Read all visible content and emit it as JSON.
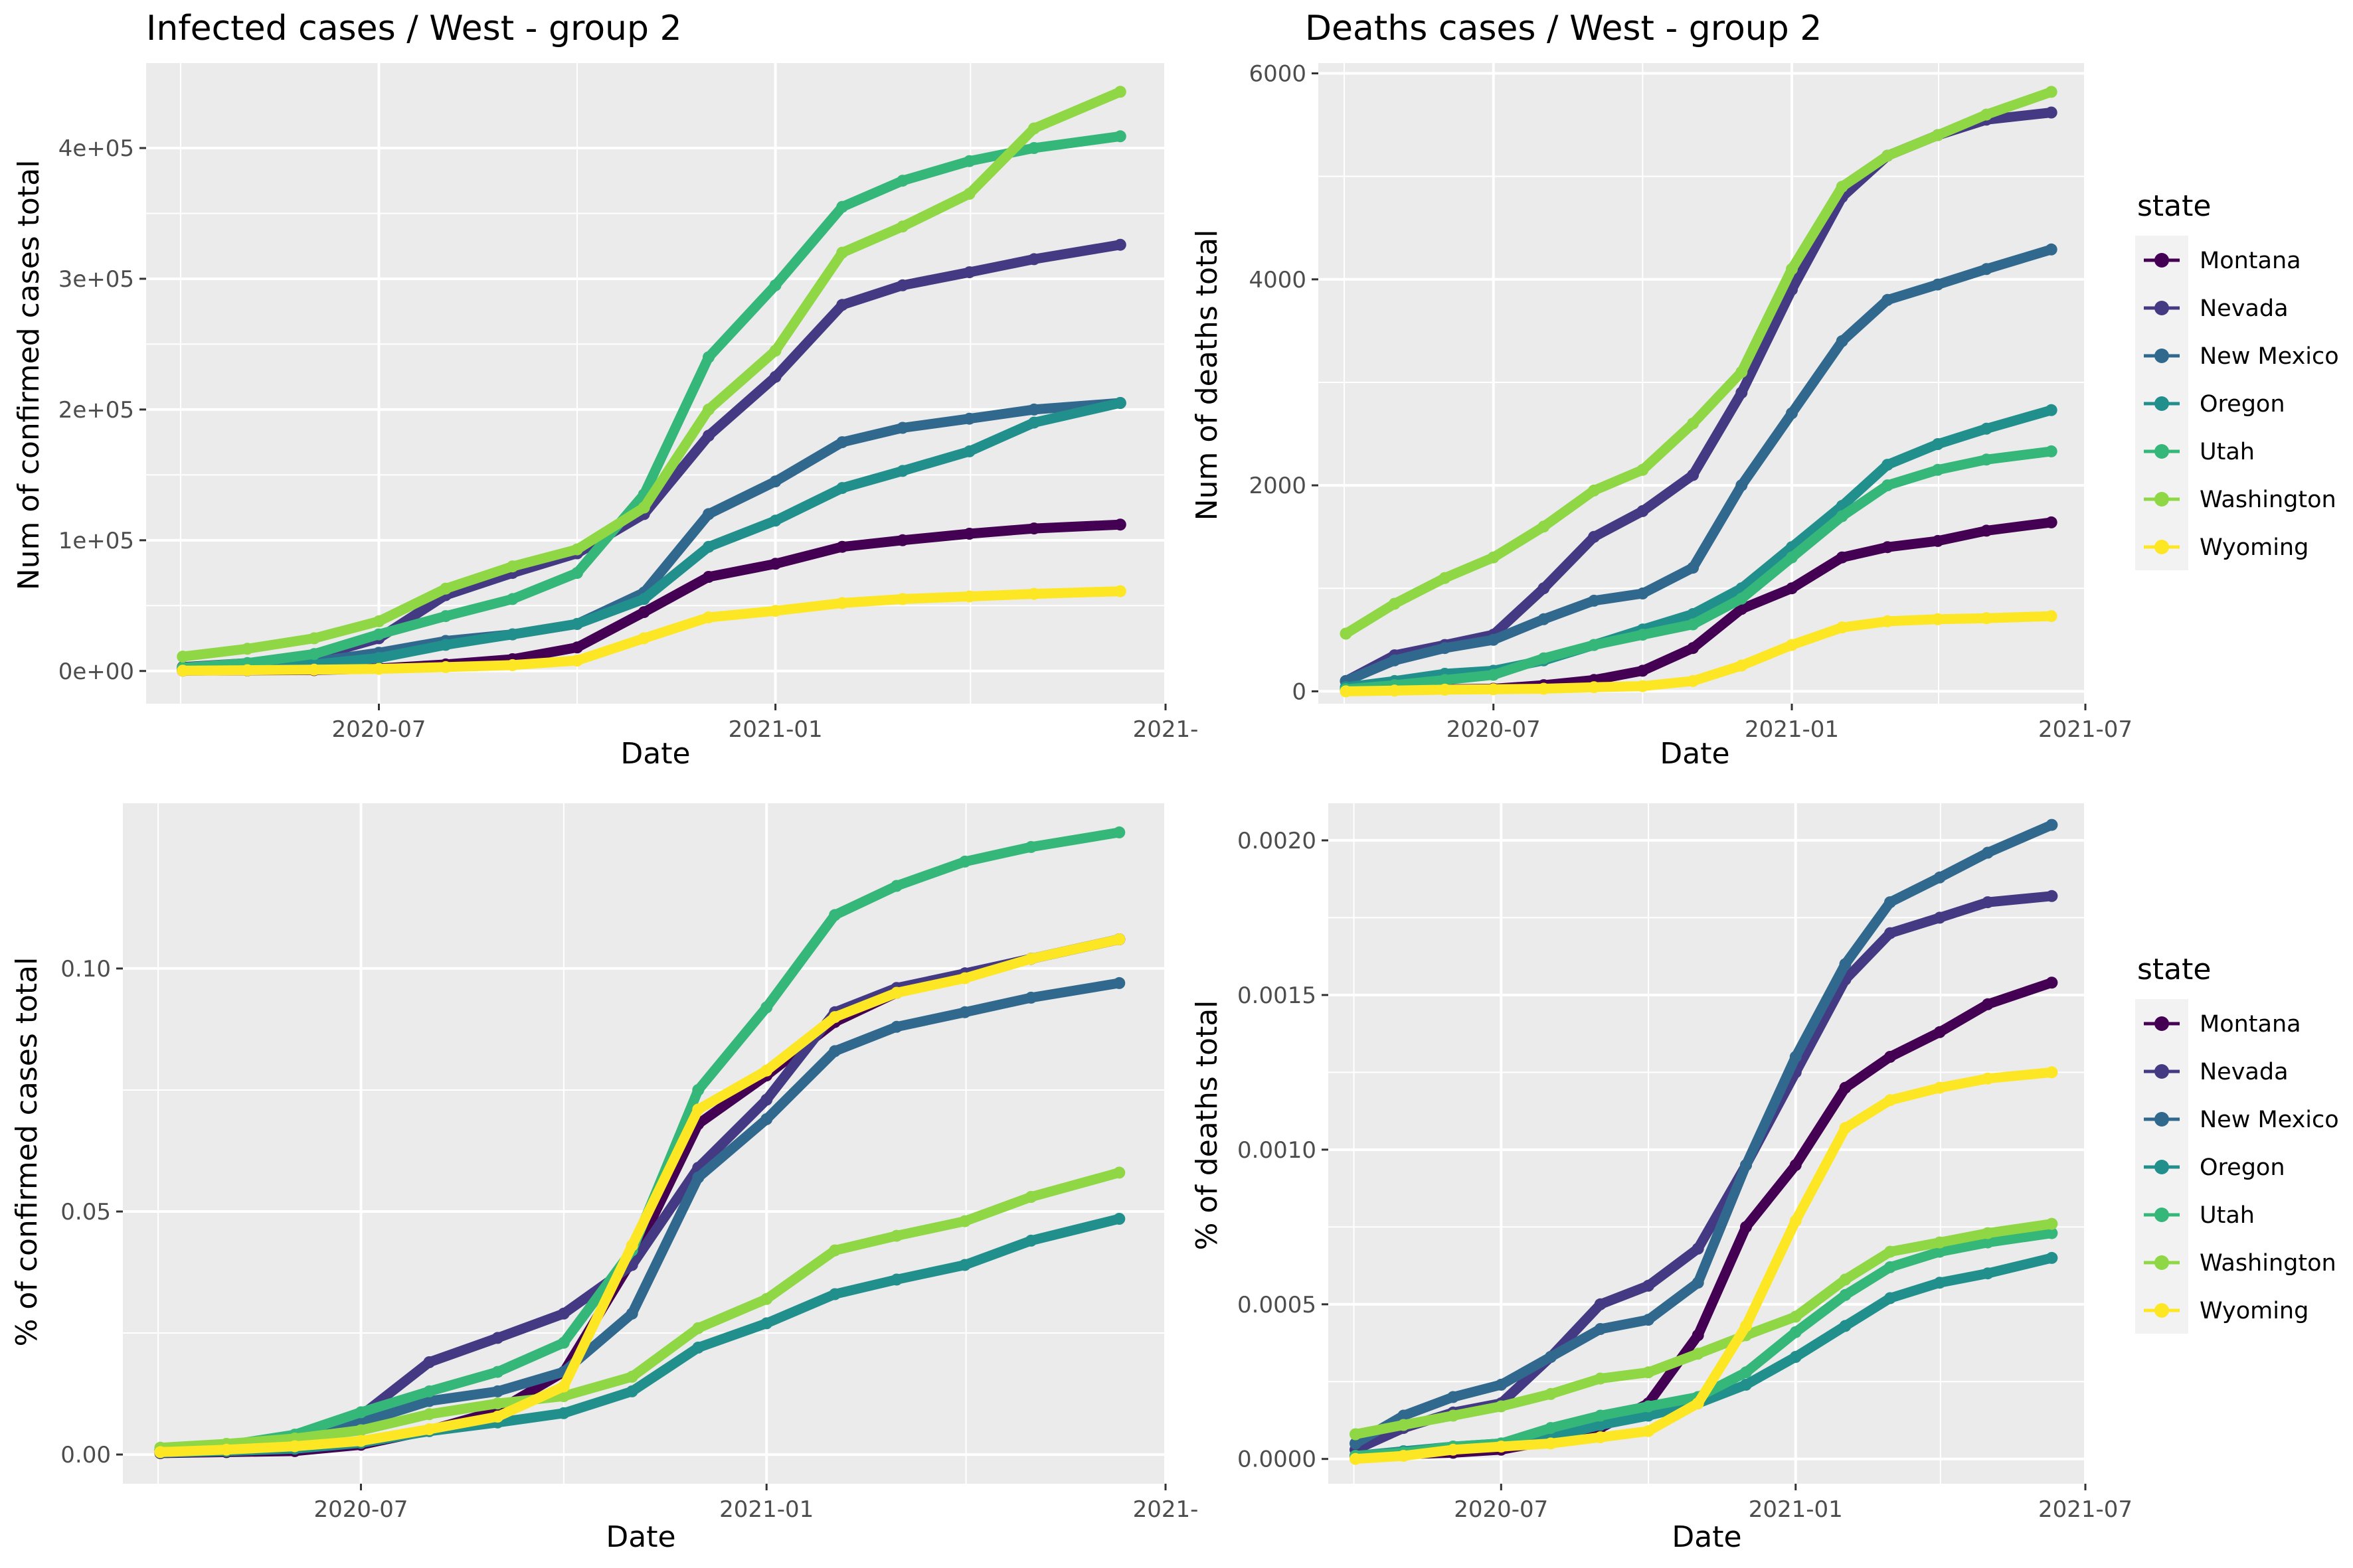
{
  "panels": [
    {
      "title": "Infected cases / West - group 2",
      "xlabel": "Date",
      "ylabel": "Num of confirmed cases total"
    },
    {
      "title": "Deaths cases / West - group 2",
      "xlabel": "Date",
      "ylabel": "Num of deaths total"
    },
    {
      "title": "",
      "xlabel": "Date",
      "ylabel": "% of confirmed cases total"
    },
    {
      "title": "",
      "xlabel": "Date",
      "ylabel": "% of deaths total"
    }
  ],
  "legends": [
    {
      "title": "state",
      "entries": [
        "Montana",
        "Nevada",
        "New Mexico",
        "Oregon",
        "Utah",
        "Washington",
        "Wyoming"
      ]
    },
    {
      "title": "state",
      "entries": [
        "Montana",
        "Nevada",
        "New Mexico",
        "Oregon",
        "Utah",
        "Washington",
        "Wyoming"
      ]
    }
  ],
  "colors": {
    "Montana": "#440154",
    "Nevada": "#443A83",
    "New Mexico": "#31688E",
    "Oregon": "#21908C",
    "Utah": "#35B779",
    "Washington": "#8FD744",
    "Wyoming": "#FDE725",
    "panel_bg": "#EBEBEB",
    "grid": "#FFFFFF"
  },
  "chart_data": [
    {
      "type": "line",
      "title": "Infected cases / West - group 2",
      "xlabel": "Date",
      "ylabel": "Num of confirmed cases total",
      "xlim": [
        "2020-03-15",
        "2021-07-01"
      ],
      "ylim": [
        -25000,
        465000
      ],
      "x_ticks": [
        "2020-07-01",
        "2021-01-01",
        "2021-07-01"
      ],
      "x_tick_labels": [
        "2020-07",
        "2021-01",
        "2021-"
      ],
      "y_ticks": [
        0,
        100000,
        200000,
        300000,
        400000
      ],
      "y_tick_labels": [
        "0e+00",
        "1e+05",
        "2e+05",
        "3e+05",
        "4e+05"
      ],
      "x": [
        "2020-04-01",
        "2020-05-01",
        "2020-06-01",
        "2020-07-01",
        "2020-08-01",
        "2020-09-01",
        "2020-10-01",
        "2020-11-01",
        "2020-12-01",
        "2021-01-01",
        "2021-02-01",
        "2021-03-01",
        "2021-04-01",
        "2021-05-01",
        "2021-06-10"
      ],
      "series": [
        {
          "name": "Montana",
          "values": [
            300,
            500,
            700,
            2000,
            5000,
            9000,
            18000,
            45000,
            72000,
            82000,
            95000,
            100000,
            105000,
            109000,
            112000
          ]
        },
        {
          "name": "Nevada",
          "values": [
            3000,
            6000,
            11000,
            25000,
            58000,
            75000,
            90000,
            120000,
            180000,
            225000,
            280000,
            295000,
            305000,
            315000,
            326000
          ]
        },
        {
          "name": "New Mexico",
          "values": [
            1000,
            3000,
            7000,
            14000,
            23000,
            28000,
            36000,
            60000,
            120000,
            145000,
            175000,
            186000,
            193000,
            200000,
            205000
          ]
        },
        {
          "name": "Oregon",
          "values": [
            1500,
            3000,
            5000,
            10000,
            20000,
            28000,
            36000,
            55000,
            95000,
            115000,
            140000,
            153000,
            168000,
            190000,
            205000
          ]
        },
        {
          "name": "Utah",
          "values": [
            2500,
            6000,
            13000,
            28000,
            42000,
            55000,
            75000,
            135000,
            240000,
            295000,
            355000,
            375000,
            390000,
            400000,
            409000
          ]
        },
        {
          "name": "Washington",
          "values": [
            11000,
            17000,
            25000,
            38000,
            63000,
            80000,
            93000,
            125000,
            200000,
            245000,
            320000,
            340000,
            365000,
            415000,
            443000
          ]
        },
        {
          "name": "Wyoming",
          "values": [
            300,
            600,
            1000,
            1600,
            3000,
            4500,
            8000,
            25000,
            41000,
            46000,
            52000,
            55000,
            57000,
            59000,
            61000
          ]
        }
      ]
    },
    {
      "type": "line",
      "title": "Deaths cases / West - group 2",
      "xlabel": "Date",
      "ylabel": "Num of deaths total",
      "xlim": [
        "2020-03-15",
        "2021-07-01"
      ],
      "ylim": [
        -120,
        6100
      ],
      "x_ticks": [
        "2020-07-01",
        "2021-01-01",
        "2021-07-01"
      ],
      "x_tick_labels": [
        "2020-07",
        "2021-01",
        "2021-07"
      ],
      "y_ticks": [
        0,
        2000,
        4000,
        6000
      ],
      "y_tick_labels": [
        "0",
        "2000",
        "4000",
        "6000"
      ],
      "x": [
        "2020-04-01",
        "2020-05-01",
        "2020-06-01",
        "2020-07-01",
        "2020-08-01",
        "2020-09-01",
        "2020-10-01",
        "2020-11-01",
        "2020-12-01",
        "2021-01-01",
        "2021-02-01",
        "2021-03-01",
        "2021-04-01",
        "2021-05-01",
        "2021-06-10"
      ],
      "series": [
        {
          "name": "Montana",
          "values": [
            10,
            16,
            20,
            25,
            60,
            110,
            200,
            420,
            800,
            1000,
            1300,
            1400,
            1460,
            1560,
            1640
          ]
        },
        {
          "name": "Nevada",
          "values": [
            100,
            350,
            450,
            550,
            1000,
            1500,
            1750,
            2100,
            2900,
            3900,
            4800,
            5200,
            5400,
            5550,
            5620
          ]
        },
        {
          "name": "New Mexico",
          "values": [
            100,
            300,
            420,
            500,
            700,
            880,
            950,
            1200,
            2000,
            2700,
            3400,
            3800,
            3950,
            4100,
            4290
          ]
        },
        {
          "name": "Oregon",
          "values": [
            40,
            100,
            170,
            200,
            300,
            450,
            600,
            750,
            1000,
            1400,
            1800,
            2200,
            2400,
            2550,
            2730
          ]
        },
        {
          "name": "Utah",
          "values": [
            20,
            60,
            110,
            160,
            320,
            450,
            550,
            650,
            900,
            1300,
            1700,
            2000,
            2150,
            2250,
            2330
          ]
        },
        {
          "name": "Washington",
          "values": [
            560,
            850,
            1100,
            1300,
            1600,
            1950,
            2150,
            2600,
            3100,
            4100,
            4900,
            5200,
            5400,
            5600,
            5820
          ]
        },
        {
          "name": "Wyoming",
          "values": [
            0,
            7,
            16,
            20,
            25,
            40,
            50,
            100,
            250,
            450,
            620,
            680,
            700,
            710,
            730
          ]
        }
      ]
    },
    {
      "type": "line",
      "title": "",
      "xlabel": "Date",
      "ylabel": "% of confirmed cases total",
      "xlim": [
        "2020-03-15",
        "2021-07-01"
      ],
      "ylim": [
        -0.006,
        0.134
      ],
      "x_ticks": [
        "2020-07-01",
        "2021-01-01",
        "2021-07-01"
      ],
      "x_tick_labels": [
        "2020-07",
        "2021-01",
        "2021-"
      ],
      "y_ticks": [
        0.0,
        0.05,
        0.1
      ],
      "y_tick_labels": [
        "0.00",
        "0.05",
        "0.10"
      ],
      "x": [
        "2020-04-01",
        "2020-05-01",
        "2020-06-01",
        "2020-07-01",
        "2020-08-01",
        "2020-09-01",
        "2020-10-01",
        "2020-11-01",
        "2020-12-01",
        "2021-01-01",
        "2021-02-01",
        "2021-03-01",
        "2021-04-01",
        "2021-05-01",
        "2021-06-10"
      ],
      "series": [
        {
          "name": "Montana",
          "values": [
            0.0003,
            0.0005,
            0.0007,
            0.002,
            0.005,
            0.009,
            0.017,
            0.04,
            0.068,
            0.078,
            0.089,
            0.095,
            0.099,
            0.102,
            0.106
          ]
        },
        {
          "name": "Nevada",
          "values": [
            0.001,
            0.002,
            0.0036,
            0.008,
            0.019,
            0.024,
            0.029,
            0.039,
            0.059,
            0.073,
            0.091,
            0.096,
            0.099,
            0.102,
            0.106
          ]
        },
        {
          "name": "New Mexico",
          "values": [
            0.0005,
            0.0014,
            0.0033,
            0.0066,
            0.011,
            0.013,
            0.017,
            0.029,
            0.057,
            0.069,
            0.083,
            0.088,
            0.091,
            0.094,
            0.097
          ]
        },
        {
          "name": "Oregon",
          "values": [
            0.0004,
            0.0007,
            0.0012,
            0.0024,
            0.0048,
            0.0066,
            0.0085,
            0.013,
            0.022,
            0.027,
            0.033,
            0.036,
            0.039,
            0.044,
            0.0485
          ]
        },
        {
          "name": "Utah",
          "values": [
            0.0008,
            0.0019,
            0.0041,
            0.0087,
            0.013,
            0.017,
            0.023,
            0.042,
            0.075,
            0.092,
            0.111,
            0.117,
            0.122,
            0.125,
            0.128
          ]
        },
        {
          "name": "Washington",
          "values": [
            0.0014,
            0.0022,
            0.0033,
            0.005,
            0.0083,
            0.0105,
            0.012,
            0.016,
            0.026,
            0.032,
            0.042,
            0.045,
            0.048,
            0.053,
            0.058
          ]
        },
        {
          "name": "Wyoming",
          "values": [
            0.0005,
            0.001,
            0.0017,
            0.0028,
            0.0052,
            0.0078,
            0.014,
            0.043,
            0.071,
            0.079,
            0.09,
            0.095,
            0.098,
            0.102,
            0.106
          ]
        }
      ]
    },
    {
      "type": "line",
      "title": "",
      "xlabel": "Date",
      "ylabel": "% of deaths total",
      "xlim": [
        "2020-03-15",
        "2021-07-01"
      ],
      "ylim": [
        -8e-05,
        0.00212
      ],
      "x_ticks": [
        "2020-07-01",
        "2021-01-01",
        "2021-07-01"
      ],
      "x_tick_labels": [
        "2020-07",
        "2021-01",
        "2021-07"
      ],
      "y_ticks": [
        0.0,
        0.0005,
        0.001,
        0.0015,
        0.002
      ],
      "y_tick_labels": [
        "0.0000",
        "0.0005",
        "0.0010",
        "0.0015",
        "0.0020"
      ],
      "x": [
        "2020-04-01",
        "2020-05-01",
        "2020-06-01",
        "2020-07-01",
        "2020-08-01",
        "2020-09-01",
        "2020-10-01",
        "2020-11-01",
        "2020-12-01",
        "2021-01-01",
        "2021-02-01",
        "2021-03-01",
        "2021-04-01",
        "2021-05-01",
        "2021-06-10"
      ],
      "series": [
        {
          "name": "Montana",
          "values": [
            1e-05,
            1.5e-05,
            2e-05,
            3e-05,
            6e-05,
            0.0001,
            0.00018,
            0.0004,
            0.00075,
            0.00095,
            0.0012,
            0.0013,
            0.00138,
            0.00147,
            0.00154
          ]
        },
        {
          "name": "Nevada",
          "values": [
            3e-05,
            0.0001,
            0.00015,
            0.00018,
            0.00033,
            0.0005,
            0.00056,
            0.00068,
            0.00095,
            0.00125,
            0.00155,
            0.0017,
            0.00175,
            0.0018,
            0.00182
          ]
        },
        {
          "name": "New Mexico",
          "values": [
            5e-05,
            0.00014,
            0.0002,
            0.00024,
            0.00033,
            0.00042,
            0.00045,
            0.00057,
            0.00095,
            0.0013,
            0.0016,
            0.0018,
            0.00188,
            0.00196,
            0.00205
          ]
        },
        {
          "name": "Oregon",
          "values": [
            1e-05,
            2.5e-05,
            4e-05,
            5e-05,
            7e-05,
            0.00011,
            0.00014,
            0.00018,
            0.00024,
            0.00033,
            0.00043,
            0.00052,
            0.00057,
            0.0006,
            0.00065
          ]
        },
        {
          "name": "Utah",
          "values": [
            1e-05,
            2e-05,
            4e-05,
            5e-05,
            0.0001,
            0.00014,
            0.00017,
            0.0002,
            0.00028,
            0.00041,
            0.00053,
            0.00062,
            0.00067,
            0.0007,
            0.00073
          ]
        },
        {
          "name": "Washington",
          "values": [
            8e-05,
            0.00011,
            0.00014,
            0.00017,
            0.00021,
            0.00026,
            0.00028,
            0.00034,
            0.0004,
            0.00046,
            0.00058,
            0.00067,
            0.0007,
            0.00073,
            0.00076
          ]
        },
        {
          "name": "Wyoming",
          "values": [
            0.0,
            1e-05,
            3e-05,
            4e-05,
            5e-05,
            7e-05,
            9e-05,
            0.00018,
            0.00043,
            0.00077,
            0.00107,
            0.00116,
            0.0012,
            0.00123,
            0.00125
          ]
        }
      ]
    }
  ]
}
